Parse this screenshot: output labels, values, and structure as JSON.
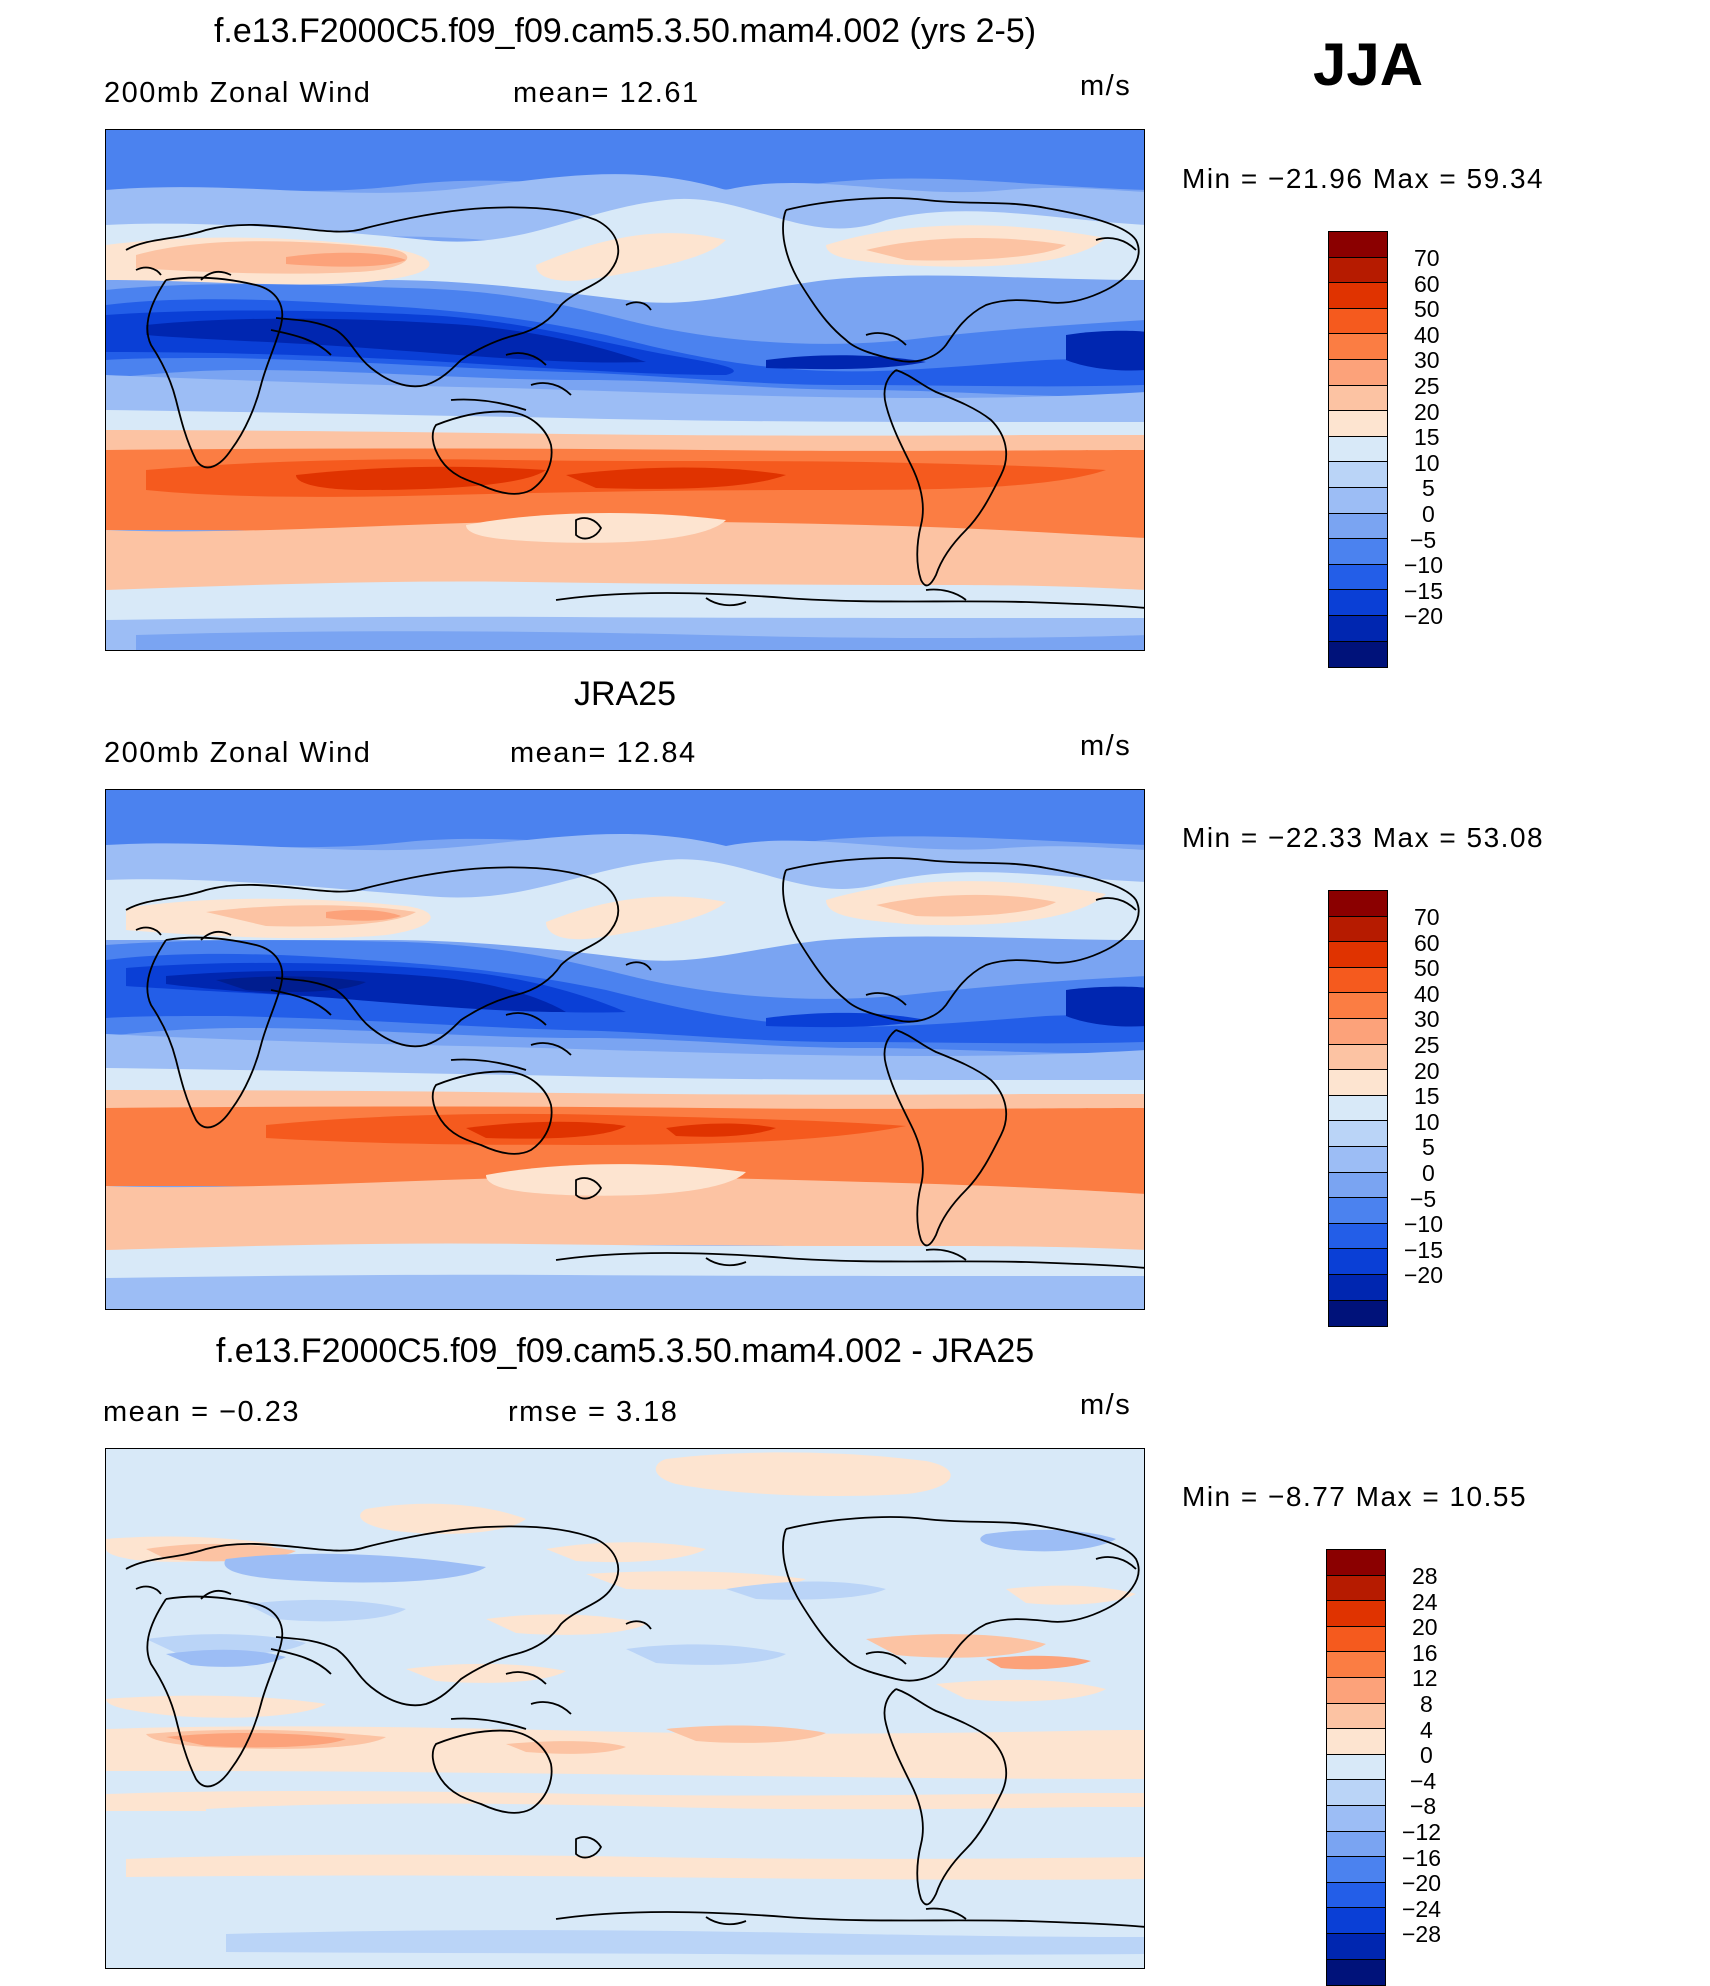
{
  "season": "JJA",
  "palette": {
    "c1": [
      "#8b0000",
      "#b61b00",
      "#e03300",
      "#f55a1e",
      "#fb7d43",
      "#fca27a",
      "#fcc3a3",
      "#fde4d0",
      "#d8e9f8",
      "#bad4f7",
      "#9cbdf5",
      "#7aa4f2",
      "#4b82ef",
      "#235ee8",
      "#0a3fd6",
      "#0026b0",
      "#001d8f",
      "#00127a"
    ],
    "c3": [
      "#8b0000",
      "#b61b00",
      "#e03300",
      "#f55a1e",
      "#fb7d43",
      "#fca27a",
      "#fcc3a3",
      "#fde4d0",
      "#d8e9f8",
      "#bad4f7",
      "#9cbdf5",
      "#7aa4f2",
      "#4b82ef",
      "#235ee8",
      "#0a3fd6",
      "#0026b0",
      "#00127a"
    ]
  },
  "panels": [
    {
      "title": "f.e13.F2000C5.f09_f09.cam5.3.50.mam4.002 (yrs 2-5)",
      "left_label": "200mb Zonal Wind",
      "mid_label": "mean=   12.61",
      "units": "m/s",
      "minmax": "Min  =  −21.96  Max  =    59.34",
      "colorbar_ticks": [
        "70",
        "60",
        "50",
        "40",
        "30",
        "25",
        "20",
        "15",
        "10",
        "5",
        "0",
        "−5",
        "−10",
        "−15",
        "−20"
      ]
    },
    {
      "title": "JRA25",
      "left_label": "200mb Zonal Wind",
      "mid_label": "mean=   12.84",
      "units": "m/s",
      "minmax": "Min  =  −22.33  Max  =    53.08",
      "colorbar_ticks": [
        "70",
        "60",
        "50",
        "40",
        "30",
        "25",
        "20",
        "15",
        "10",
        "5",
        "0",
        "−5",
        "−10",
        "−15",
        "−20"
      ]
    },
    {
      "title": "f.e13.F2000C5.f09_f09.cam5.3.50.mam4.002 - JRA25",
      "left_label": "mean  =    −0.23",
      "mid_label": "rmse  =     3.18",
      "units": "m/s",
      "minmax": "Min  =    −8.77  Max  =    10.55",
      "colorbar_ticks": [
        "28",
        "24",
        "20",
        "16",
        "12",
        "8",
        "4",
        "0",
        "−4",
        "−8",
        "−12",
        "−16",
        "−20",
        "−24",
        "−28"
      ]
    }
  ]
}
